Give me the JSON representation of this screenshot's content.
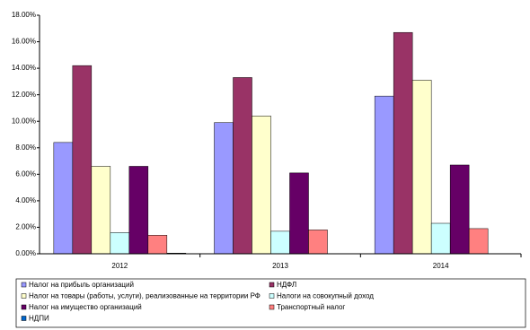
{
  "chart_data": {
    "type": "bar",
    "categories": [
      "2012",
      "2013",
      "2014"
    ],
    "series": [
      {
        "name": "Налог на прибыль организаций",
        "color": "#9999ff",
        "values": [
          8.4,
          9.9,
          11.9
        ]
      },
      {
        "name": "НДФЛ",
        "color": "#993366",
        "values": [
          14.2,
          13.3,
          16.7
        ]
      },
      {
        "name": "Налог на товары (работы, услуги), реализованные на территории РФ",
        "color": "#ffffcc",
        "values": [
          6.6,
          10.4,
          13.1
        ]
      },
      {
        "name": "Налоги на совокупный доход",
        "color": "#ccffff",
        "values": [
          1.6,
          1.7,
          2.3
        ]
      },
      {
        "name": "Налог на имущество организаций",
        "color": "#660066",
        "values": [
          6.6,
          6.1,
          6.7
        ]
      },
      {
        "name": "Транспортный налог",
        "color": "#ff8080",
        "values": [
          1.4,
          1.8,
          1.9
        ]
      },
      {
        "name": "НДПИ",
        "color": "#0066cc",
        "values": [
          0.05,
          0,
          0
        ]
      }
    ],
    "ylim": [
      0,
      18
    ],
    "yticks": [
      {
        "value": 0,
        "label": "0.00%"
      },
      {
        "value": 2,
        "label": "2.00%"
      },
      {
        "value": 4,
        "label": "4.00%"
      },
      {
        "value": 6,
        "label": "6.00%"
      },
      {
        "value": 8,
        "label": "8.00%"
      },
      {
        "value": 10,
        "label": "10.00%"
      },
      {
        "value": 12,
        "label": "12.00%"
      },
      {
        "value": 14,
        "label": "14.00%"
      },
      {
        "value": 16,
        "label": "16.00%"
      },
      {
        "value": 18,
        "label": "18.00%"
      }
    ],
    "grid": false,
    "legend": "bottom"
  }
}
